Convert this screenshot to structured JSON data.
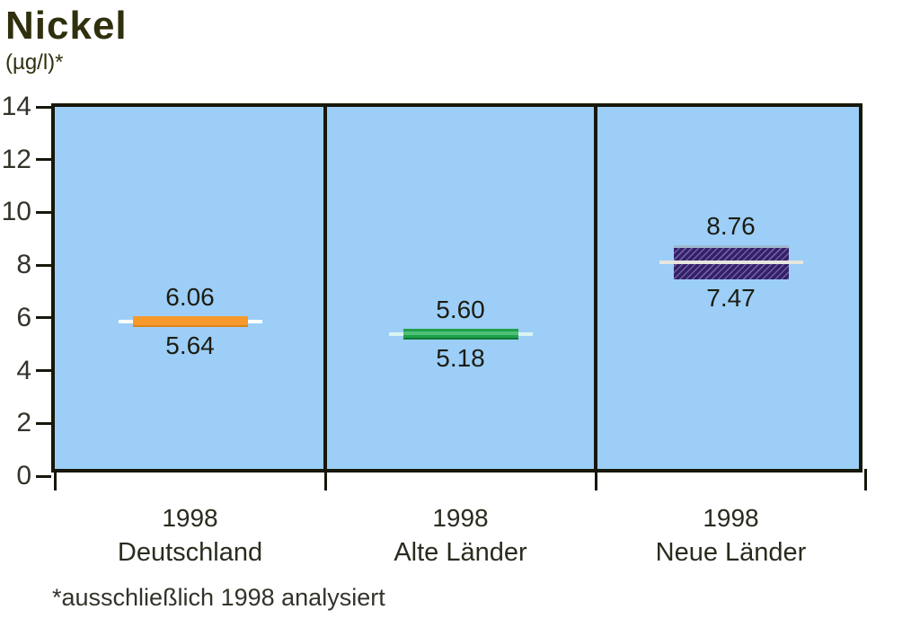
{
  "title": "Nickel",
  "unit_label": "(µg/l)*",
  "footnote": "*ausschließlich 1998 analysiert",
  "colors": {
    "plot_background": "#9CCEF7",
    "axis": "#17170a",
    "title_text": "#30300f",
    "deutschland_bar": "#F8992C",
    "alte_laender_bar": "#1FA14B",
    "neue_laender_bar": "#342069"
  },
  "chart_data": {
    "type": "bar",
    "subtype": "range-bar",
    "title": "Nickel",
    "ylabel": "(µg/l)*",
    "ylim": [
      0,
      14
    ],
    "yticks": [
      0,
      2,
      4,
      6,
      8,
      10,
      12,
      14
    ],
    "grid": false,
    "legend": false,
    "groups": [
      {
        "year": "1998",
        "region": "Deutschland",
        "high": 6.06,
        "low": 5.64,
        "bar_color": "#F8992C",
        "bar_bottom_edge": "#DE8418",
        "hatched": false,
        "center_stripe_color": "",
        "mean_line_color": "#FFFFFF",
        "mean_line_over_bar": false
      },
      {
        "year": "1998",
        "region": "Alte Länder",
        "high": 5.6,
        "low": 5.18,
        "bar_color": "#1FA14B",
        "bar_bottom_edge": "#0E7A35",
        "hatched": false,
        "center_stripe_color": "#4FC077",
        "mean_line_color": "#D9F4F0",
        "mean_line_over_bar": false
      },
      {
        "year": "1998",
        "region": "Neue Länder",
        "high": 8.76,
        "low": 7.47,
        "bar_color": "#342069",
        "bar_top_edge": "#9FB8CE",
        "hatched": true,
        "center_stripe_color": "",
        "mean_line_color": "#E6E6DE",
        "mean_line_over_bar": true
      }
    ]
  }
}
